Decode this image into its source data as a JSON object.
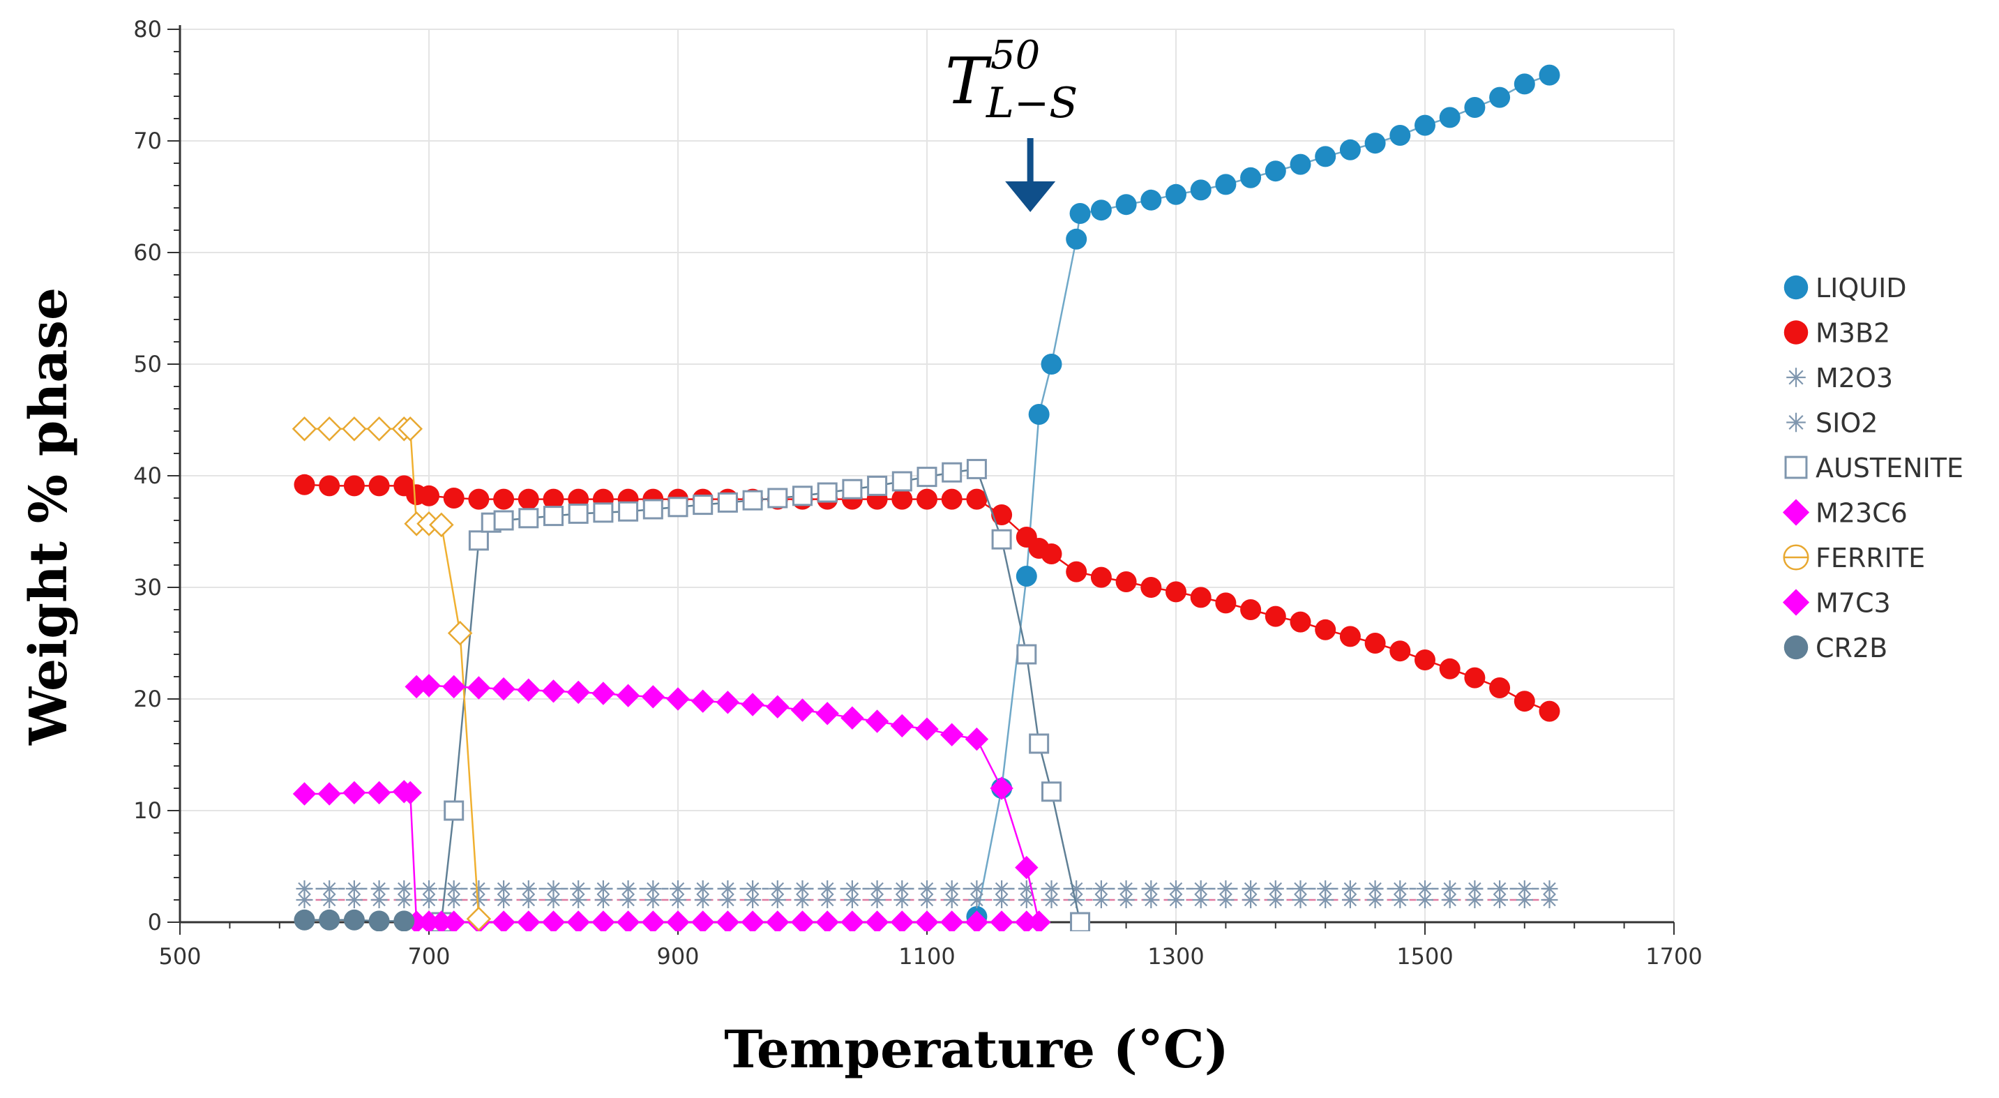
{
  "chart_data": {
    "type": "line",
    "title": "",
    "xlabel": "Temperature (°C)",
    "ylabel": "Weight % phase",
    "xlim": [
      500,
      1700
    ],
    "ylim": [
      0,
      80
    ],
    "xticks": [
      500,
      700,
      900,
      1100,
      1300,
      1500,
      1700
    ],
    "yticks": [
      0,
      10,
      20,
      30,
      40,
      50,
      60,
      70,
      80
    ],
    "grid": true,
    "legend_position": "right",
    "annotation": {
      "base": "T",
      "subscript": "L−S",
      "superscript": "50",
      "arrow_x": 1183,
      "arrow_y_top": 70,
      "arrow_y_bottom": 63
    },
    "series": [
      {
        "name": "LIQUID",
        "color": "#1f8bc4",
        "marker": "circle-filled",
        "line_color": "#6fa8c8",
        "x": [
          1140,
          1160,
          1180,
          1190,
          1200,
          1220,
          1223,
          1240,
          1260,
          1280,
          1300,
          1320,
          1340,
          1360,
          1380,
          1400,
          1420,
          1440,
          1460,
          1480,
          1500,
          1520,
          1540,
          1560,
          1580,
          1600
        ],
        "y": [
          0.5,
          12,
          31,
          45.5,
          50,
          61.2,
          63.5,
          63.8,
          64.3,
          64.7,
          65.2,
          65.6,
          66.1,
          66.7,
          67.3,
          67.9,
          68.6,
          69.2,
          69.8,
          70.5,
          71.4,
          72.1,
          73.0,
          73.9,
          75.1,
          75.9
        ]
      },
      {
        "name": "M3B2",
        "color": "#ee1111",
        "marker": "circle-filled",
        "line_color": "#ee1111",
        "x": [
          600,
          620,
          640,
          660,
          680,
          690,
          700,
          720,
          740,
          760,
          780,
          800,
          820,
          840,
          860,
          880,
          900,
          920,
          940,
          960,
          980,
          1000,
          1020,
          1040,
          1060,
          1080,
          1100,
          1120,
          1140,
          1160,
          1180,
          1190,
          1200,
          1220,
          1240,
          1260,
          1280,
          1300,
          1320,
          1340,
          1360,
          1380,
          1400,
          1420,
          1440,
          1460,
          1480,
          1500,
          1520,
          1540,
          1560,
          1580,
          1600
        ],
        "y": [
          39.2,
          39.1,
          39.1,
          39.1,
          39.1,
          38.3,
          38.2,
          38.0,
          37.9,
          37.9,
          37.9,
          37.9,
          37.9,
          37.9,
          37.9,
          37.9,
          37.9,
          37.9,
          37.9,
          37.9,
          37.9,
          37.9,
          37.9,
          37.9,
          37.9,
          37.9,
          37.9,
          37.9,
          37.9,
          36.5,
          34.5,
          33.5,
          33.0,
          31.4,
          30.9,
          30.5,
          30.0,
          29.6,
          29.1,
          28.6,
          28.0,
          27.4,
          26.9,
          26.2,
          25.6,
          25.0,
          24.3,
          23.5,
          22.7,
          21.9,
          21.0,
          19.8,
          18.9
        ]
      },
      {
        "name": "M2O3",
        "color": "#7f96ae",
        "marker": "asterisk",
        "line_color": "#7f96ae",
        "x": [
          600,
          620,
          640,
          660,
          680,
          700,
          720,
          740,
          760,
          780,
          800,
          820,
          840,
          860,
          880,
          900,
          920,
          940,
          960,
          980,
          1000,
          1020,
          1040,
          1060,
          1080,
          1100,
          1120,
          1140,
          1160,
          1180,
          1200,
          1220,
          1240,
          1260,
          1280,
          1300,
          1320,
          1340,
          1360,
          1380,
          1400,
          1420,
          1440,
          1460,
          1480,
          1500,
          1520,
          1540,
          1560,
          1580,
          1600
        ],
        "y": [
          3,
          3,
          3,
          3,
          3,
          3,
          3,
          3,
          3,
          3,
          3,
          3,
          3,
          3,
          3,
          3,
          3,
          3,
          3,
          3,
          3,
          3,
          3,
          3,
          3,
          3,
          3,
          3,
          3,
          3,
          3,
          3,
          3,
          3,
          3,
          3,
          3,
          3,
          3,
          3,
          3,
          3,
          3,
          3,
          3,
          3,
          3,
          3,
          3,
          3,
          3
        ]
      },
      {
        "name": "SIO2",
        "color": "#7f96ae",
        "marker": "asterisk",
        "line_color": "#e07aa0",
        "x": [
          600,
          620,
          640,
          660,
          680,
          700,
          720,
          740,
          760,
          780,
          800,
          820,
          840,
          860,
          880,
          900,
          920,
          940,
          960,
          980,
          1000,
          1020,
          1040,
          1060,
          1080,
          1100,
          1120,
          1140,
          1160,
          1180,
          1200,
          1220,
          1240,
          1260,
          1280,
          1300,
          1320,
          1340,
          1360,
          1380,
          1400,
          1420,
          1440,
          1460,
          1480,
          1500,
          1520,
          1540,
          1560,
          1580,
          1600
        ],
        "y": [
          2,
          2,
          2,
          2,
          2,
          2,
          2,
          2,
          2,
          2,
          2,
          2,
          2,
          2,
          2,
          2,
          2,
          2,
          2,
          2,
          2,
          2,
          2,
          2,
          2,
          2,
          2,
          2,
          2,
          2,
          2,
          2,
          2,
          2,
          2,
          2,
          2,
          2,
          2,
          2,
          2,
          2,
          2,
          2,
          2,
          2,
          2,
          2,
          2,
          2,
          2
        ]
      },
      {
        "name": "AUSTENITE",
        "color": "#7f96ae",
        "marker": "square-open",
        "line_color": "#5f7f95",
        "x": [
          710,
          720,
          740,
          750,
          760,
          780,
          800,
          820,
          840,
          860,
          880,
          900,
          920,
          940,
          960,
          980,
          1000,
          1020,
          1040,
          1060,
          1080,
          1100,
          1120,
          1140,
          1160,
          1180,
          1190,
          1200,
          1223
        ],
        "y": [
          0,
          10,
          34.2,
          35.8,
          36.0,
          36.2,
          36.4,
          36.6,
          36.7,
          36.8,
          37.0,
          37.2,
          37.4,
          37.6,
          37.8,
          38.0,
          38.2,
          38.5,
          38.8,
          39.1,
          39.5,
          39.9,
          40.3,
          40.6,
          34.3,
          24.0,
          16.0,
          11.7,
          0
        ]
      },
      {
        "name": "M23C6",
        "color": "#ff00ff",
        "marker": "diamond-filled",
        "line_color": "#ff00ff",
        "x": [
          600,
          620,
          640,
          660,
          680,
          685,
          690,
          700,
          710,
          720,
          740,
          760,
          780,
          800,
          820,
          840,
          860,
          880,
          900,
          920,
          940,
          960,
          980,
          1000,
          1020,
          1040,
          1060,
          1080,
          1100,
          1120,
          1140,
          1160,
          1180,
          1190
        ],
        "y": [
          11.5,
          11.5,
          11.6,
          11.6,
          11.7,
          11.6,
          0,
          0,
          0,
          0,
          0,
          0,
          0,
          0,
          0,
          0,
          0,
          0,
          0,
          0,
          0,
          0,
          0,
          0,
          0,
          0,
          0,
          0,
          0,
          0,
          0,
          0,
          0,
          0
        ]
      },
      {
        "name": "FERRITE",
        "color": "#e8a830",
        "marker": "diamond-open",
        "line_color": "#f0b030",
        "x": [
          600,
          620,
          640,
          660,
          680,
          685,
          690,
          700,
          710,
          725,
          740
        ],
        "y": [
          44.2,
          44.2,
          44.2,
          44.2,
          44.2,
          44.2,
          35.7,
          35.7,
          35.6,
          25.9,
          0.3
        ]
      },
      {
        "name": "M7C3",
        "color": "#ff00ff",
        "marker": "diamond-filled",
        "line_color": "#ff00ff",
        "x": [
          690,
          700,
          720,
          740,
          760,
          780,
          800,
          820,
          840,
          860,
          880,
          900,
          920,
          940,
          960,
          980,
          1000,
          1020,
          1040,
          1060,
          1080,
          1100,
          1120,
          1140,
          1160,
          1180,
          1190
        ],
        "y": [
          21.1,
          21.2,
          21.1,
          21.0,
          20.9,
          20.8,
          20.7,
          20.6,
          20.5,
          20.3,
          20.2,
          20.0,
          19.8,
          19.7,
          19.5,
          19.3,
          19.0,
          18.7,
          18.3,
          18.0,
          17.6,
          17.3,
          16.8,
          16.4,
          12.0,
          4.9,
          0
        ]
      },
      {
        "name": "CR2B",
        "color": "#5f7f95",
        "marker": "circle-filled",
        "line_color": "#5f7f95",
        "x": [
          600,
          620,
          640,
          660,
          680
        ],
        "y": [
          0.2,
          0.2,
          0.2,
          0.1,
          0.1
        ]
      }
    ]
  }
}
